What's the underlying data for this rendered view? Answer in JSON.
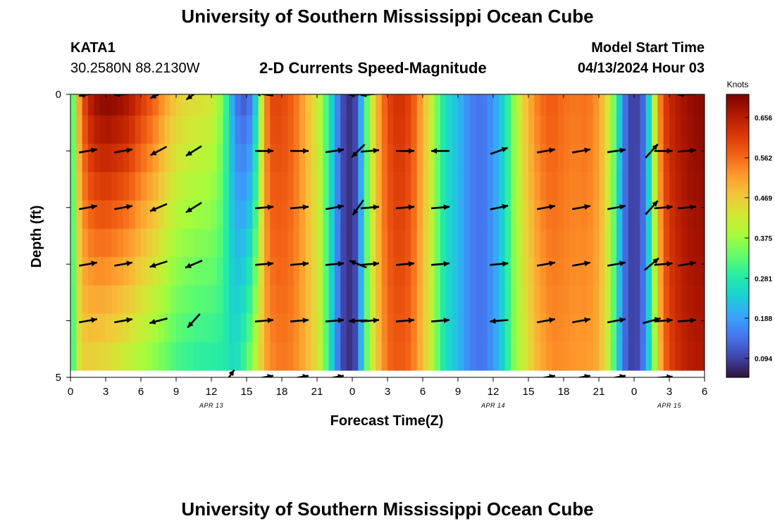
{
  "header": {
    "title": "University of Southern Mississippi Ocean Cube",
    "station": "KATA1",
    "coordinates": "30.2580N  88.2130W",
    "subtitle": "2-D Currents Speed-Magnitude",
    "model_start_label": "Model Start Time",
    "model_start_value": "04/13/2024 Hour 03"
  },
  "footer": {
    "title": "University of Southern Mississippi Ocean Cube"
  },
  "colors": {
    "palette": [
      "#30123b",
      "#4145ab",
      "#4675ed",
      "#39a2fc",
      "#1bcfd4",
      "#24eca6",
      "#61fc6c",
      "#a4fc3b",
      "#d1e834",
      "#f3c63a",
      "#fe9b2d",
      "#f36315",
      "#d93806",
      "#b11901",
      "#7a0402"
    ]
  },
  "chart_data": {
    "type": "heatmap",
    "title": "2-D Currents Speed-Magnitude",
    "xlabel": "Forecast Time(Z)",
    "ylabel": "Depth (ft)",
    "ylim": [
      0,
      5
    ],
    "y_ticks": [
      "0",
      "5"
    ],
    "x_ticks": [
      "0",
      "3",
      "6",
      "9",
      "12",
      "15",
      "18",
      "21",
      "0",
      "3",
      "6",
      "9",
      "12",
      "15",
      "18",
      "21",
      "0",
      "3",
      "6"
    ],
    "date_labels": [
      {
        "hour": 12,
        "text": "APR 13"
      },
      {
        "hour": 36,
        "text": "APR 14"
      },
      {
        "hour": 51,
        "text": "APR 15"
      }
    ],
    "x_range_hours": [
      0,
      54
    ],
    "units": "Knots",
    "colorbar": {
      "ticks": [
        "0.656",
        "0.562",
        "0.469",
        "0.375",
        "0.281",
        "0.188",
        "0.094"
      ],
      "tick_values": [
        0.656,
        0.562,
        0.469,
        0.375,
        0.281,
        0.188,
        0.094
      ],
      "range": [
        0.05,
        0.71
      ]
    },
    "row_depths": [
      0.125,
      0.625,
      1.125,
      1.625,
      2.125,
      2.625,
      3.125,
      3.625,
      4.125,
      4.625
    ],
    "speed_profile": {
      "hours": [
        0,
        0.3,
        0.7,
        1,
        1.5,
        2,
        3,
        4,
        5,
        6,
        7,
        8,
        9,
        10,
        11,
        12,
        13,
        13.5,
        14,
        14.5,
        15,
        15.5,
        16,
        16.5,
        17,
        18,
        19,
        20,
        21,
        21.5,
        22,
        22.5,
        23,
        23.5,
        24,
        24.5,
        25,
        26,
        27,
        28,
        29,
        30,
        31,
        31.5,
        32,
        33,
        34,
        35,
        36,
        37,
        37.5,
        38,
        39,
        40,
        41,
        42,
        43,
        44,
        45,
        46,
        46.5,
        47,
        47.5,
        48,
        48.5,
        49,
        49.5,
        50,
        50.5,
        51,
        52,
        53,
        54
      ],
      "surface": [
        0.28,
        0.35,
        0.5,
        0.58,
        0.64,
        0.68,
        0.7,
        0.69,
        0.67,
        0.62,
        0.58,
        0.52,
        0.47,
        0.45,
        0.44,
        0.43,
        0.35,
        0.25,
        0.16,
        0.12,
        0.12,
        0.16,
        0.3,
        0.5,
        0.6,
        0.6,
        0.57,
        0.5,
        0.42,
        0.36,
        0.28,
        0.2,
        0.12,
        0.08,
        0.08,
        0.12,
        0.28,
        0.48,
        0.6,
        0.63,
        0.6,
        0.5,
        0.38,
        0.3,
        0.26,
        0.22,
        0.16,
        0.14,
        0.18,
        0.26,
        0.33,
        0.4,
        0.5,
        0.56,
        0.58,
        0.56,
        0.55,
        0.56,
        0.52,
        0.4,
        0.3,
        0.18,
        0.1,
        0.09,
        0.1,
        0.16,
        0.32,
        0.5,
        0.6,
        0.64,
        0.67,
        0.69,
        0.7
      ],
      "bottom": [
        0.28,
        0.33,
        0.42,
        0.45,
        0.45,
        0.44,
        0.43,
        0.41,
        0.39,
        0.37,
        0.35,
        0.33,
        0.3,
        0.29,
        0.28,
        0.28,
        0.28,
        0.27,
        0.26,
        0.3,
        0.33,
        0.38,
        0.44,
        0.5,
        0.53,
        0.55,
        0.54,
        0.5,
        0.44,
        0.38,
        0.28,
        0.2,
        0.11,
        0.08,
        0.08,
        0.12,
        0.3,
        0.46,
        0.56,
        0.58,
        0.56,
        0.48,
        0.38,
        0.3,
        0.26,
        0.22,
        0.16,
        0.14,
        0.18,
        0.26,
        0.33,
        0.38,
        0.44,
        0.5,
        0.53,
        0.53,
        0.52,
        0.52,
        0.5,
        0.38,
        0.26,
        0.16,
        0.1,
        0.09,
        0.11,
        0.18,
        0.3,
        0.44,
        0.55,
        0.6,
        0.64,
        0.66,
        0.66
      ]
    },
    "vectors": {
      "depths": [
        0,
        1,
        2,
        3,
        4,
        5
      ],
      "hours": [
        1.5,
        4.5,
        7.5,
        10.5,
        13.5,
        16.5,
        19.5,
        22.5,
        24.5,
        25.5,
        28.5,
        31.5,
        36.5,
        40.5,
        43.5,
        46.5,
        49.5,
        50.5,
        52.5
      ],
      "angles_deg": [
        [
          190,
          185,
          205,
          215,
          null,
          172,
          null,
          null,
          182,
          185,
          null,
          null,
          null,
          null,
          null,
          null,
          null,
          null,
          182
        ],
        [
          10,
          10,
          208,
          212,
          null,
          0,
          0,
          8,
          225,
          5,
          0,
          180,
          20,
          10,
          10,
          8,
          48,
          0,
          5
        ],
        [
          10,
          10,
          203,
          212,
          null,
          5,
          5,
          10,
          235,
          5,
          5,
          5,
          12,
          10,
          10,
          10,
          48,
          5,
          5
        ],
        [
          10,
          10,
          198,
          203,
          null,
          5,
          5,
          5,
          158,
          5,
          5,
          5,
          5,
          10,
          10,
          10,
          40,
          5,
          10
        ],
        [
          10,
          10,
          195,
          228,
          null,
          5,
          5,
          5,
          182,
          5,
          5,
          5,
          185,
          10,
          10,
          10,
          15,
          5,
          5
        ],
        [
          null,
          null,
          null,
          null,
          55,
          10,
          10,
          10,
          null,
          null,
          null,
          null,
          null,
          10,
          10,
          10,
          null,
          5,
          null
        ]
      ]
    }
  }
}
